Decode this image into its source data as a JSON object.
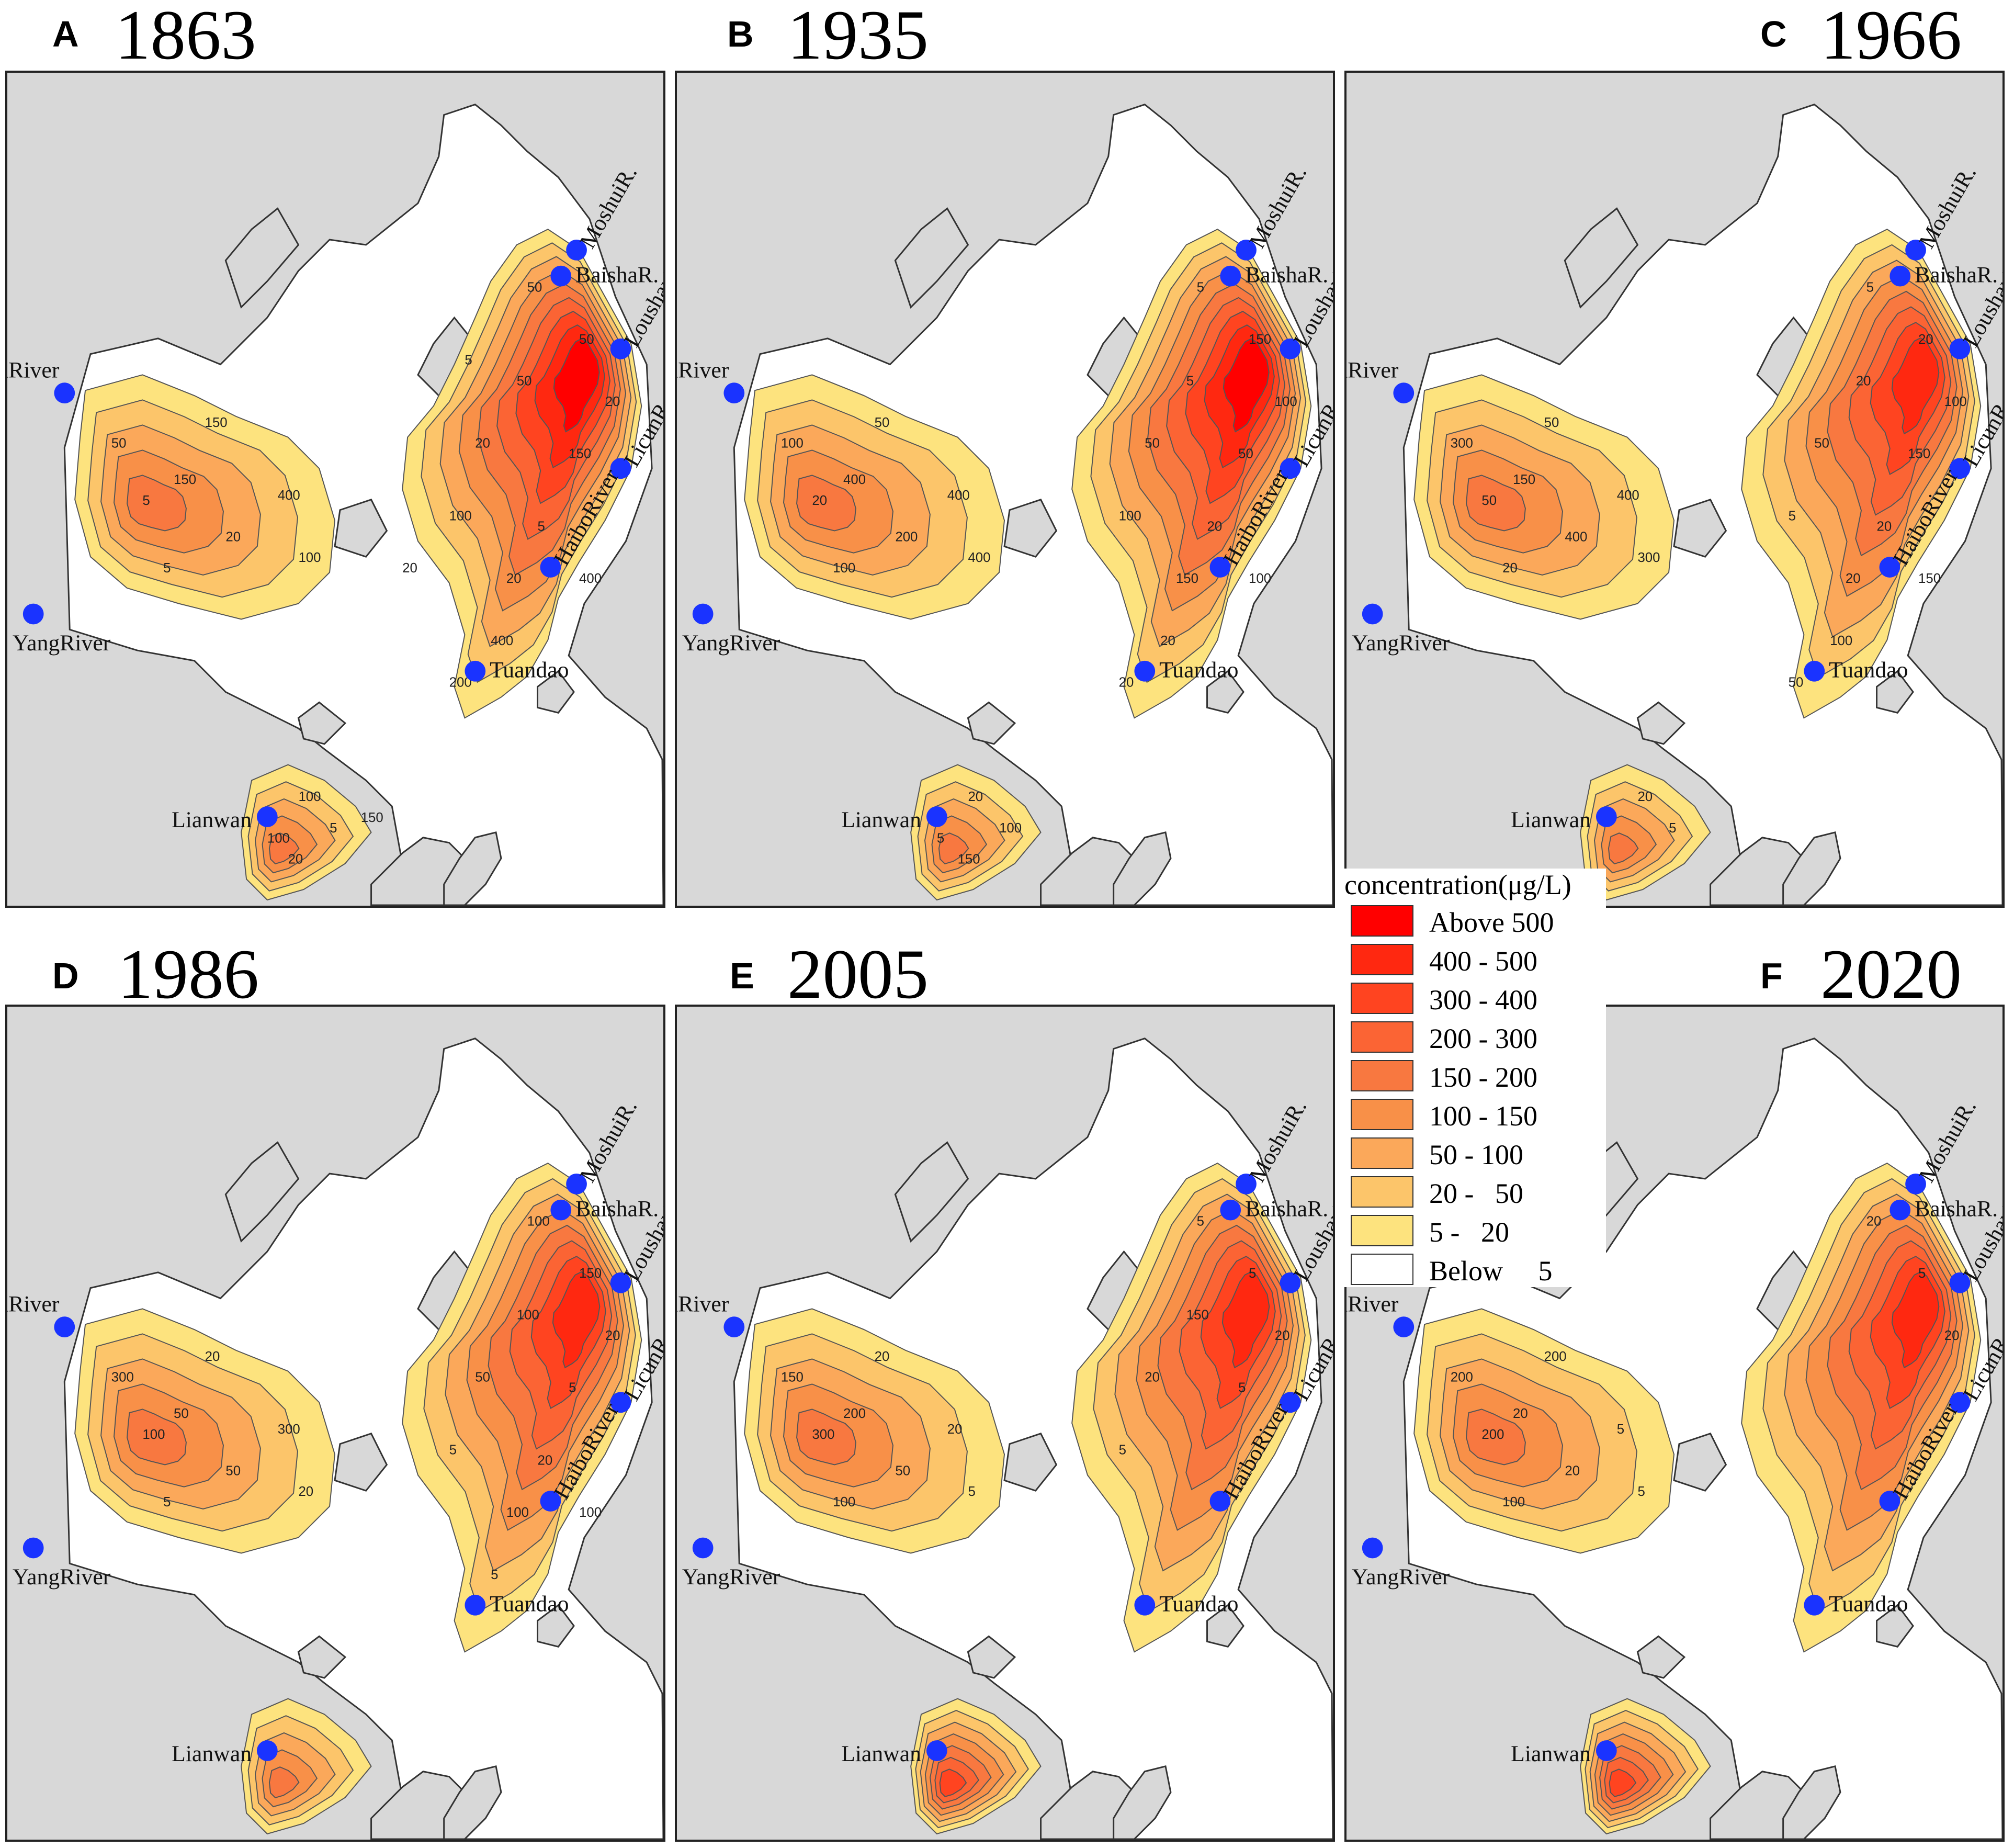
{
  "legend": {
    "title": "concentration(μg/L)",
    "items": [
      {
        "label": "Above 500",
        "color": "#ff0000"
      },
      {
        "label": "400 - 500",
        "color": "#ff2810"
      },
      {
        "label": "300 - 400",
        "color": "#ff4420"
      },
      {
        "label": "200 - 300",
        "color": "#fb6434"
      },
      {
        "label": "150 - 200",
        "color": "#f87840"
      },
      {
        "label": "100 - 150",
        "color": "#f89048"
      },
      {
        "label": "50 - 100",
        "color": "#fba85a"
      },
      {
        "label": "20 -   50",
        "color": "#fcc56a"
      },
      {
        "label": "5 -   20",
        "color": "#fde37e"
      },
      {
        "label": "Below     5",
        "color": "#ffffff"
      }
    ]
  },
  "colors": {
    "land": "#d8d8d8",
    "station_marker": "#1a33ff",
    "contour_line": "#555555"
  },
  "panels": [
    {
      "letter": "A",
      "year": "1863",
      "stations": [
        "DaguRiver",
        "YangRiver",
        "MoshuiR.",
        "BaishaR.",
        "LoushanR.",
        "LicunR.",
        "HaiboRiver",
        "Tuandao",
        "Lianwan"
      ],
      "contour_labels": [
        "5",
        "50",
        "150",
        "20",
        "400",
        "100",
        "5",
        "150",
        "50",
        "50",
        "20",
        "150",
        "50",
        "20",
        "100",
        "5",
        "20",
        "400",
        "400",
        "200",
        "100",
        "5",
        "20",
        "100",
        "150",
        "20",
        "5"
      ],
      "levels": {
        "west": "150 - 200",
        "east": "Above 500",
        "lianwan": "150 - 200"
      }
    },
    {
      "letter": "B",
      "year": "1935",
      "stations": [
        "DaguRiver",
        "YangRiver",
        "MoshuiR.",
        "BaishaR.",
        "LoushanR.",
        "LicunR.",
        "HaiboRiver",
        "Tuandao",
        "Lianwan"
      ],
      "contour_labels": [
        "20",
        "100",
        "400",
        "200",
        "400",
        "400",
        "100",
        "50",
        "5",
        "150",
        "100",
        "50",
        "5",
        "50",
        "100",
        "20",
        "150",
        "100",
        "20",
        "20",
        "20",
        "100",
        "150",
        "5"
      ],
      "levels": {
        "west": "150 - 200",
        "east": "Above 500",
        "lianwan": "150 - 200"
      }
    },
    {
      "letter": "C",
      "year": "1966",
      "stations": [
        "DaguRiver",
        "YangRiver",
        "MoshuiR.",
        "BaishaR.",
        "LoushanR.",
        "LicunR.",
        "HaiboRiver",
        "Tuandao",
        "Lianwan"
      ],
      "contour_labels": [
        "50",
        "300",
        "150",
        "400",
        "400",
        "300",
        "20",
        "50",
        "5",
        "20",
        "100",
        "150",
        "20",
        "50",
        "5",
        "20",
        "20",
        "150",
        "100",
        "50",
        "20",
        "5"
      ],
      "levels": {
        "west": "150 - 200",
        "east": "400 - 500",
        "lianwan": "150 - 200"
      }
    },
    {
      "letter": "D",
      "year": "1986",
      "stations": [
        "DaguRiver",
        "YangRiver",
        "MoshuiR.",
        "BaishaR.",
        "LoushanR.",
        "LicunR.",
        "HaiboRiver",
        "Tuandao",
        "Lianwan"
      ],
      "contour_labels": [
        "100",
        "300",
        "50",
        "50",
        "300",
        "20",
        "5",
        "20",
        "100",
        "150",
        "20",
        "5",
        "100",
        "50",
        "5",
        "20",
        "100",
        "100",
        "5"
      ],
      "levels": {
        "west": "150 - 200",
        "east": "400 - 500",
        "lianwan": "150 - 200"
      }
    },
    {
      "letter": "E",
      "year": "2005",
      "stations": [
        "DaguRiver",
        "YangRiver",
        "MoshuiR.",
        "BaishaR.",
        "LoushanR.",
        "LicunR.",
        "HaiboRiver",
        "Tuandao",
        "Lianwan"
      ],
      "contour_labels": [
        "300",
        "150",
        "200",
        "50",
        "20",
        "5",
        "100",
        "20",
        "5",
        "5",
        "20",
        "5",
        "150",
        "20",
        "5"
      ],
      "levels": {
        "west": "150 - 200",
        "east": "400 - 500",
        "lianwan": "300 - 400"
      }
    },
    {
      "letter": "F",
      "year": "2020",
      "stations": [
        "DaguRiver",
        "YangRiver",
        "MoshuiR.",
        "BaishaR.",
        "LoushanR.",
        "LicunR.",
        "HaiboRiver",
        "Tuandao",
        "Lianwan"
      ],
      "contour_labels": [
        "200",
        "200",
        "20",
        "20",
        "5",
        "5",
        "100",
        "200",
        "20",
        "5",
        "20"
      ],
      "levels": {
        "west": "150 - 200",
        "east": "400 - 500",
        "lianwan": "300 - 400"
      }
    }
  ]
}
